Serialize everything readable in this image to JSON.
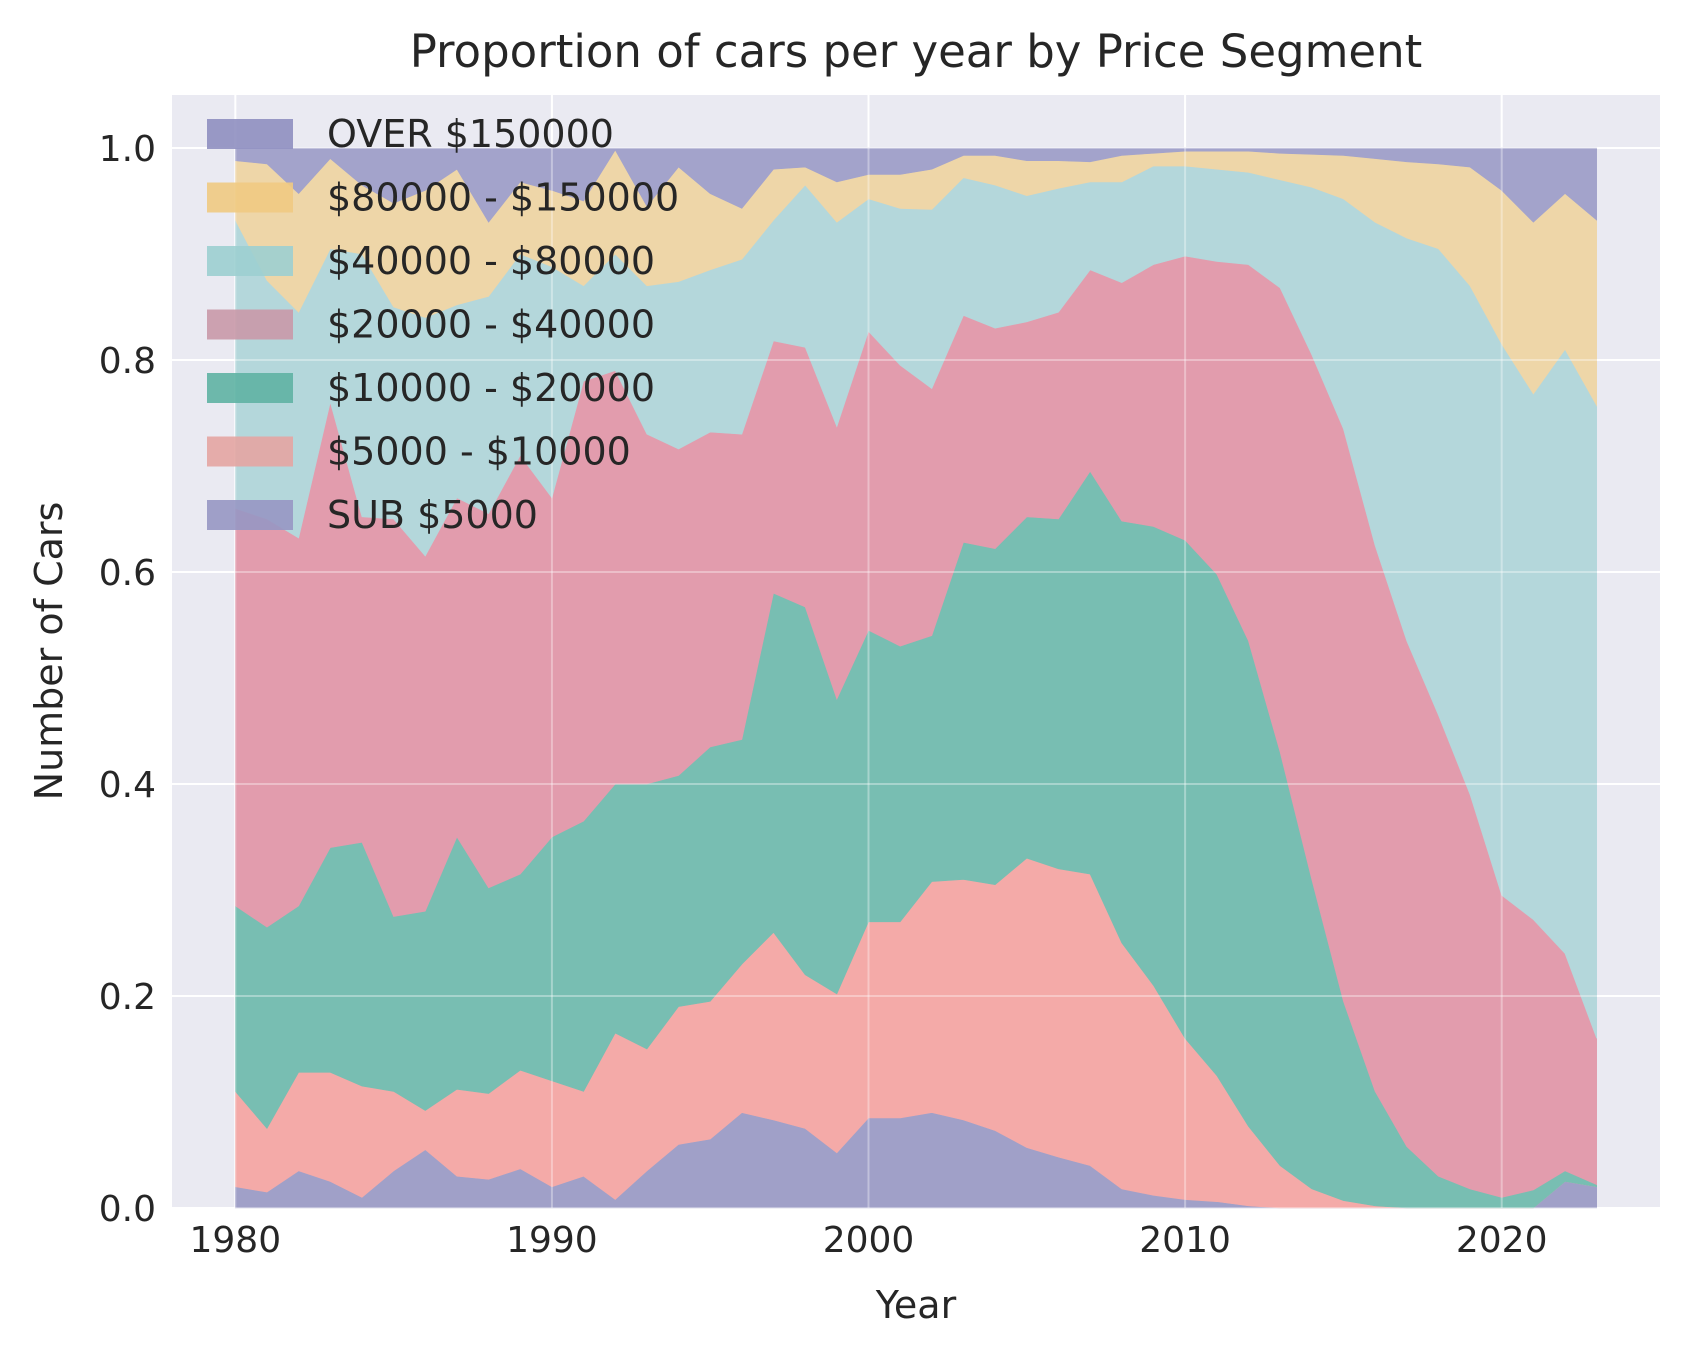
{
  "chart_data": {
    "type": "area",
    "title": "Proportion of cars per year by Price Segment",
    "xlabel": "Year",
    "ylabel": "Number of Cars",
    "xlim": [
      1978,
      2025
    ],
    "ylim": [
      0,
      1.05
    ],
    "xticks": [
      1980,
      1990,
      2000,
      2010,
      2020
    ],
    "yticks": [
      0.0,
      0.2,
      0.4,
      0.6,
      0.8,
      1.0
    ],
    "ytick_labels": [
      "0.0",
      "0.2",
      "0.4",
      "0.6",
      "0.8",
      "1.0"
    ],
    "grid": true,
    "legend_position": "top-left",
    "background": "#eaeaf2",
    "x": [
      1980,
      1981,
      1982,
      1983,
      1984,
      1985,
      1986,
      1987,
      1988,
      1989,
      1990,
      1991,
      1992,
      1993,
      1994,
      1995,
      1996,
      1997,
      1998,
      1999,
      2000,
      2001,
      2002,
      2003,
      2004,
      2005,
      2006,
      2007,
      2008,
      2009,
      2010,
      2011,
      2012,
      2013,
      2014,
      2015,
      2016,
      2017,
      2018,
      2019,
      2020,
      2021,
      2022,
      2023
    ],
    "cumulative_boundaries": [
      {
        "name": "SUB $5000",
        "top": [
          0.02,
          0.015,
          0.035,
          0.025,
          0.01,
          0.035,
          0.055,
          0.03,
          0.027,
          0.037,
          0.02,
          0.03,
          0.008,
          0.035,
          0.06,
          0.065,
          0.09,
          0.083,
          0.075,
          0.052,
          0.085,
          0.085,
          0.09,
          0.083,
          0.073,
          0.057,
          0.048,
          0.04,
          0.018,
          0.012,
          0.008,
          0.006,
          0.002,
          0.0,
          0.0,
          0.0,
          0.0,
          0.0,
          0.0,
          0.0,
          0.0,
          0.0,
          0.025,
          0.02
        ]
      },
      {
        "name": "$5000 - $10000",
        "top": [
          0.11,
          0.075,
          0.128,
          0.128,
          0.115,
          0.11,
          0.092,
          0.112,
          0.108,
          0.13,
          0.12,
          0.11,
          0.165,
          0.15,
          0.19,
          0.195,
          0.23,
          0.26,
          0.22,
          0.202,
          0.27,
          0.27,
          0.308,
          0.31,
          0.305,
          0.33,
          0.32,
          0.315,
          0.25,
          0.21,
          0.16,
          0.125,
          0.077,
          0.04,
          0.018,
          0.007,
          0.002,
          0.0,
          0.0,
          0.0,
          0.0,
          0.0,
          0.025,
          0.02
        ]
      },
      {
        "name": "$10000 - $20000",
        "top": [
          0.285,
          0.265,
          0.285,
          0.34,
          0.345,
          0.275,
          0.28,
          0.35,
          0.302,
          0.315,
          0.35,
          0.365,
          0.4,
          0.4,
          0.408,
          0.435,
          0.442,
          0.58,
          0.567,
          0.48,
          0.545,
          0.53,
          0.54,
          0.628,
          0.622,
          0.652,
          0.65,
          0.695,
          0.648,
          0.643,
          0.63,
          0.598,
          0.535,
          0.43,
          0.31,
          0.195,
          0.11,
          0.058,
          0.03,
          0.018,
          0.01,
          0.017,
          0.035,
          0.022
        ]
      },
      {
        "name": "$20000 - $40000",
        "top": [
          0.66,
          0.65,
          0.632,
          0.76,
          0.652,
          0.65,
          0.615,
          0.67,
          0.655,
          0.71,
          0.67,
          0.78,
          0.79,
          0.73,
          0.716,
          0.732,
          0.73,
          0.818,
          0.812,
          0.737,
          0.827,
          0.795,
          0.773,
          0.842,
          0.83,
          0.836,
          0.845,
          0.885,
          0.873,
          0.89,
          0.898,
          0.893,
          0.89,
          0.868,
          0.805,
          0.735,
          0.625,
          0.535,
          0.465,
          0.39,
          0.295,
          0.272,
          0.24,
          0.16
        ]
      },
      {
        "name": "$40000 - $80000",
        "top": [
          0.932,
          0.875,
          0.845,
          0.905,
          0.9,
          0.85,
          0.84,
          0.852,
          0.86,
          0.9,
          0.888,
          0.87,
          0.9,
          0.87,
          0.874,
          0.885,
          0.895,
          0.932,
          0.965,
          0.93,
          0.952,
          0.943,
          0.942,
          0.972,
          0.965,
          0.955,
          0.962,
          0.968,
          0.968,
          0.983,
          0.983,
          0.98,
          0.977,
          0.97,
          0.963,
          0.952,
          0.93,
          0.915,
          0.905,
          0.87,
          0.815,
          0.768,
          0.81,
          0.757
        ]
      },
      {
        "name": "$80000 - $150000",
        "top": [
          0.988,
          0.985,
          0.957,
          0.99,
          0.965,
          0.948,
          0.96,
          0.98,
          0.93,
          0.968,
          0.96,
          0.95,
          0.998,
          0.945,
          0.982,
          0.957,
          0.943,
          0.98,
          0.982,
          0.968,
          0.975,
          0.975,
          0.98,
          0.993,
          0.993,
          0.988,
          0.988,
          0.987,
          0.993,
          0.995,
          0.997,
          0.997,
          0.997,
          0.995,
          0.994,
          0.993,
          0.99,
          0.987,
          0.985,
          0.982,
          0.96,
          0.93,
          0.957,
          0.932
        ]
      },
      {
        "name": "OVER $150000",
        "top": [
          1.0,
          1.0,
          1.0,
          1.0,
          1.0,
          1.0,
          1.0,
          1.0,
          1.0,
          1.0,
          1.0,
          1.0,
          1.0,
          1.0,
          1.0,
          1.0,
          1.0,
          1.0,
          1.0,
          1.0,
          1.0,
          1.0,
          1.0,
          1.0,
          1.0,
          1.0,
          1.0,
          1.0,
          1.0,
          1.0,
          1.0,
          1.0,
          1.0,
          1.0,
          1.0,
          1.0,
          1.0,
          1.0,
          1.0,
          1.0,
          1.0,
          1.0,
          1.0,
          1.0
        ]
      }
    ],
    "series_colors": {
      "SUB $5000": "#a0a0c8",
      "$5000 - $10000": "#f4aaa8",
      "$10000 - $20000": "#78beb2",
      "$20000 - $40000": "#e29cad",
      "$40000 - $80000": "#b4d7db",
      "$80000 - $150000": "#eed6a8",
      "OVER $150000": "#a3a3cb"
    },
    "legend": [
      {
        "label": "OVER $150000",
        "color": "#8f8fc0"
      },
      {
        "label": "$80000 - $150000",
        "color": "#efca82"
      },
      {
        "label": "$40000 - $80000",
        "color": "#9ccfd0"
      },
      {
        "label": "$20000 - $40000",
        "color": "#c999a8"
      },
      {
        "label": "$10000 - $20000",
        "color": "#5fb3a3"
      },
      {
        "label": "$5000 - $10000",
        "color": "#e4a5a2"
      },
      {
        "label": "SUB $5000",
        "color": "#9797c3"
      }
    ]
  }
}
